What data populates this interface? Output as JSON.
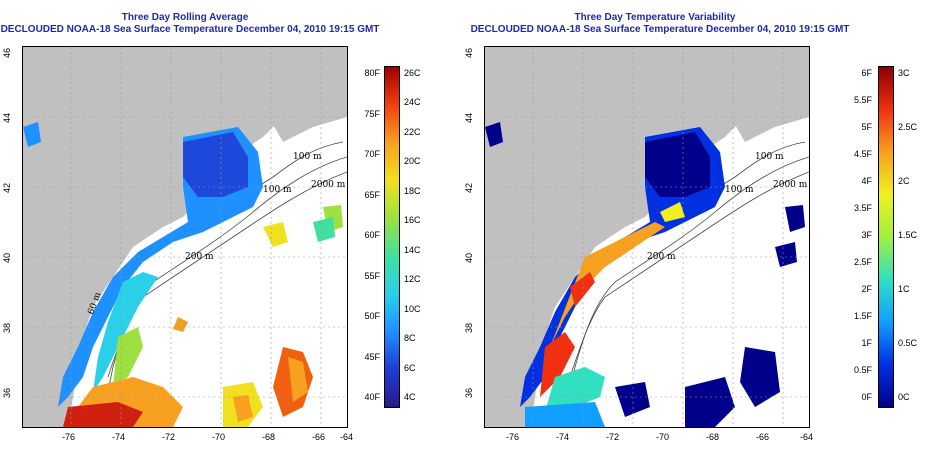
{
  "left_panel": {
    "title_line1": "Three Day Rolling Average",
    "title_line2": "DECLOUDED NOAA-18 Sea Surface Temperature December 04, 2010 19:15 GMT",
    "fahrenheit_labels": [
      "80F",
      "75F",
      "70F",
      "65F",
      "60F",
      "55F",
      "50F",
      "45F",
      "40F"
    ],
    "celsius_labels": [
      "26C",
      "24C",
      "22C",
      "20C",
      "18C",
      "16C",
      "14C",
      "12C",
      "10C",
      "8C",
      "6C",
      "4C"
    ]
  },
  "right_panel": {
    "title_line1": "Three Day Temperature Variability",
    "title_line2": "DECLOUDED NOAA-18 Sea Surface Temperature December 04, 2010 19:15 GMT",
    "fahrenheit_labels": [
      "6F",
      "5.5F",
      "5F",
      "4.5F",
      "4F",
      "3.5F",
      "3F",
      "2.5F",
      "2F",
      "1.5F",
      "1F",
      "0.5F",
      "0F"
    ],
    "celsius_labels": [
      "3C",
      "2.5C",
      "2C",
      "1.5C",
      "1C",
      "0.5C",
      "0C"
    ]
  },
  "longitude_ticks": [
    "-76",
    "-74",
    "-72",
    "-70",
    "-68",
    "-66",
    "-64"
  ],
  "latitude_ticks": [
    "46",
    "44",
    "42",
    "40",
    "38",
    "36"
  ],
  "contour_labels": [
    "100 m",
    "100 m",
    "2000 m",
    "200 m",
    "60 m"
  ],
  "colors": {
    "title": "#1f2aa8",
    "land": "#c0c0c0",
    "sst_scale": [
      "#2a1a8a",
      "#1e3cd4",
      "#1e90ff",
      "#2ad0e8",
      "#40e0a0",
      "#9ee040",
      "#f0e020",
      "#f8a020",
      "#f04010",
      "#a00000"
    ],
    "var_scale": [
      "#00008b",
      "#0030e0",
      "#10a0ff",
      "#30e0c0",
      "#a0f040",
      "#f0f020",
      "#f8a020",
      "#f03010",
      "#8b0000"
    ]
  }
}
